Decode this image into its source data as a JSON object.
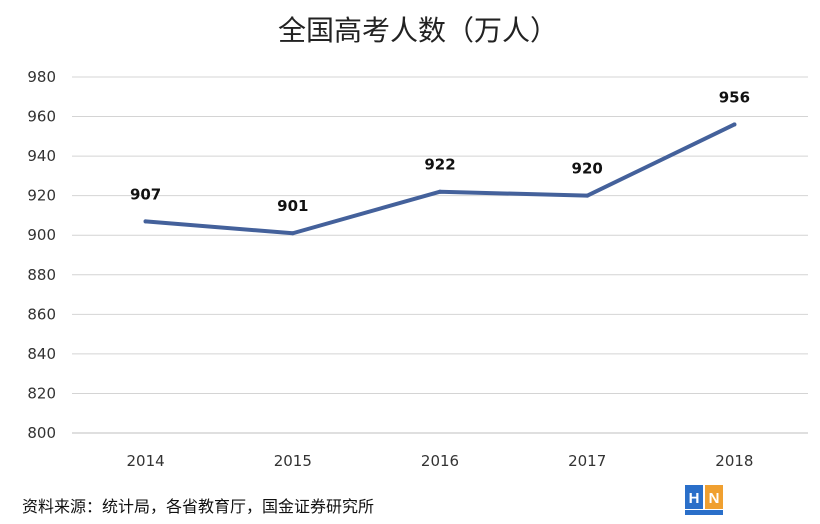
{
  "chart_data": {
    "type": "line",
    "title": "全国高考人数（万人）",
    "categories": [
      "2014",
      "2015",
      "2016",
      "2017",
      "2018"
    ],
    "series": [
      {
        "values": [
          907,
          901,
          922,
          920,
          956
        ],
        "color": "#44619b"
      }
    ],
    "data_labels": [
      "907",
      "901",
      "922",
      "920",
      "956"
    ],
    "ylim": [
      800,
      980
    ],
    "yticks": [
      800,
      820,
      840,
      860,
      880,
      900,
      920,
      940,
      960,
      980
    ],
    "grid": true,
    "legend": "none"
  },
  "source": "资料来源：统计局，各省教育厅，国金证券研究所",
  "logo": {
    "letters": "HN",
    "colors": [
      "#2a6fc9",
      "#f0a030"
    ]
  }
}
